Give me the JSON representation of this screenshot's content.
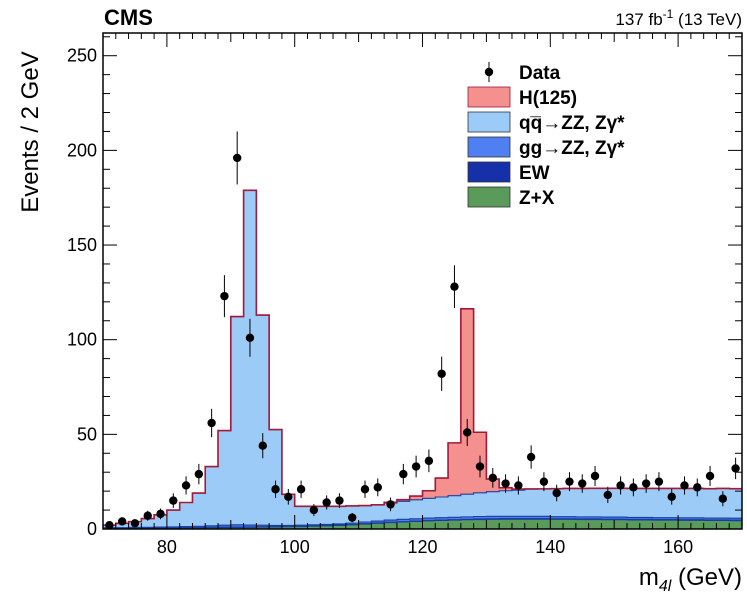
{
  "header": {
    "experiment": "CMS",
    "luminosity": "137 fb",
    "luminosity_sup": "-1",
    "energy": " (13 TeV)"
  },
  "chart_data": {
    "type": "histogram",
    "xlabel_main": "m",
    "xlabel_sub": "4l",
    "xlabel_unit": " (GeV)",
    "ylabel": "Events / 2 GeV",
    "xlim": [
      70,
      170
    ],
    "ylim": [
      0,
      262
    ],
    "bin_width": 2,
    "x_ticks": [
      80,
      100,
      120,
      140,
      160
    ],
    "y_ticks": [
      0,
      50,
      100,
      150,
      200,
      250
    ],
    "legend_position": "top-right",
    "bin_low_edges": [
      70,
      72,
      74,
      76,
      78,
      80,
      82,
      84,
      86,
      88,
      90,
      92,
      94,
      96,
      98,
      100,
      102,
      104,
      106,
      108,
      110,
      112,
      114,
      116,
      118,
      120,
      122,
      124,
      126,
      128,
      130,
      132,
      134,
      136,
      138,
      140,
      142,
      144,
      146,
      148,
      150,
      152,
      154,
      156,
      158,
      160,
      162,
      164,
      166,
      168
    ],
    "stack_order": [
      "zx",
      "ew",
      "ggzz",
      "qqzz",
      "h125"
    ],
    "series": [
      {
        "key": "zx",
        "name": "Z+X",
        "color": "#5a9a5a",
        "values": [
          0.3,
          0.3,
          0.4,
          0.4,
          0.5,
          0.5,
          0.6,
          0.6,
          0.7,
          0.8,
          0.8,
          0.9,
          1.0,
          1.1,
          1.2,
          1.3,
          1.5,
          1.7,
          1.9,
          2.2,
          2.6,
          3.0,
          3.4,
          3.7,
          4.0,
          4.3,
          4.5,
          4.7,
          4.9,
          5.0,
          5.1,
          5.2,
          5.2,
          5.2,
          5.2,
          5.1,
          5.1,
          5.0,
          5.0,
          4.9,
          4.9,
          4.8,
          4.8,
          4.7,
          4.7,
          4.6,
          4.6,
          4.5,
          4.5,
          4.4
        ]
      },
      {
        "key": "ew",
        "name": "EW",
        "color": "#1530a8",
        "values": [
          0.1,
          0.1,
          0.1,
          0.1,
          0.1,
          0.1,
          0.2,
          0.2,
          0.2,
          0.2,
          0.2,
          0.2,
          0.2,
          0.2,
          0.2,
          0.2,
          0.2,
          0.2,
          0.2,
          0.2,
          0.2,
          0.2,
          0.2,
          0.2,
          0.2,
          0.2,
          0.2,
          0.2,
          0.2,
          0.3,
          0.3,
          0.3,
          0.3,
          0.3,
          0.3,
          0.3,
          0.3,
          0.3,
          0.3,
          0.3,
          0.3,
          0.3,
          0.3,
          0.3,
          0.3,
          0.3,
          0.3,
          0.3,
          0.3,
          0.3
        ]
      },
      {
        "key": "ggzz",
        "name": "gg→ZZ, Zγ*",
        "color": "#4f7ff0",
        "values": [
          0.3,
          0.3,
          0.3,
          0.4,
          0.4,
          0.5,
          0.5,
          0.6,
          0.8,
          1.0,
          1.2,
          1.0,
          0.8,
          0.6,
          0.5,
          0.5,
          0.5,
          0.5,
          0.6,
          0.7,
          0.9,
          1.0,
          1.1,
          1.2,
          1.2,
          1.3,
          1.3,
          1.3,
          1.3,
          1.3,
          1.3,
          1.2,
          1.2,
          1.2,
          1.2,
          1.1,
          1.1,
          1.1,
          1.1,
          1.1,
          1.1,
          1.0,
          1.0,
          1.0,
          1.0,
          1.0,
          1.0,
          1.0,
          1.0,
          1.0
        ]
      },
      {
        "key": "qqzz",
        "name": "qq̅→ZZ, Zγ*",
        "color": "#9dcbf7",
        "values": [
          1.3,
          2.3,
          3.1,
          4.6,
          6.5,
          8.9,
          12.7,
          17.6,
          31.3,
          50.0,
          110.0,
          176.8,
          111.0,
          50.6,
          16.4,
          10.0,
          9.8,
          9.6,
          9.3,
          9.1,
          8.7,
          8.6,
          9.0,
          9.5,
          10.0,
          10.4,
          10.9,
          11.4,
          12.0,
          12.5,
          13.0,
          13.5,
          13.8,
          14.3,
          14.5,
          14.8,
          14.9,
          15.0,
          15.1,
          15.2,
          15.2,
          15.3,
          15.3,
          15.4,
          15.4,
          15.5,
          15.5,
          15.5,
          15.6,
          15.6
        ]
      },
      {
        "key": "h125",
        "name": "H(125)",
        "color": "#f4908e",
        "values": [
          0,
          0,
          0,
          0,
          0,
          0,
          0,
          0,
          0,
          0,
          0,
          0,
          0,
          0,
          0,
          0,
          0,
          0,
          0,
          0,
          0,
          0,
          0.4,
          0.9,
          2.0,
          4.0,
          10.0,
          27.9,
          97.9,
          32.0,
          6.7,
          1.6,
          0.6,
          0.2,
          0,
          0,
          0,
          0,
          0,
          0,
          0,
          0,
          0,
          0,
          0,
          0,
          0,
          0,
          0,
          0
        ]
      }
    ],
    "data_points": {
      "name": "Data",
      "x": [
        71,
        73,
        75,
        77,
        79,
        81,
        83,
        85,
        87,
        89,
        91,
        93,
        95,
        97,
        99,
        101,
        103,
        105,
        107,
        109,
        111,
        113,
        115,
        117,
        119,
        121,
        123,
        125,
        127,
        129,
        131,
        133,
        135,
        137,
        139,
        141,
        143,
        145,
        147,
        149,
        151,
        153,
        155,
        157,
        159,
        161,
        163,
        165,
        167,
        169
      ],
      "y": [
        2,
        4,
        3,
        7,
        8,
        15,
        23,
        29,
        56,
        123,
        196,
        101,
        44,
        21,
        17,
        21,
        10,
        14,
        15,
        6,
        21,
        22,
        13,
        29,
        33,
        36,
        82,
        128,
        51,
        33,
        27,
        24,
        23,
        38,
        25,
        19,
        25,
        24,
        28,
        18,
        23,
        22,
        24,
        25,
        17,
        23,
        22,
        28,
        16,
        32
      ]
    }
  }
}
